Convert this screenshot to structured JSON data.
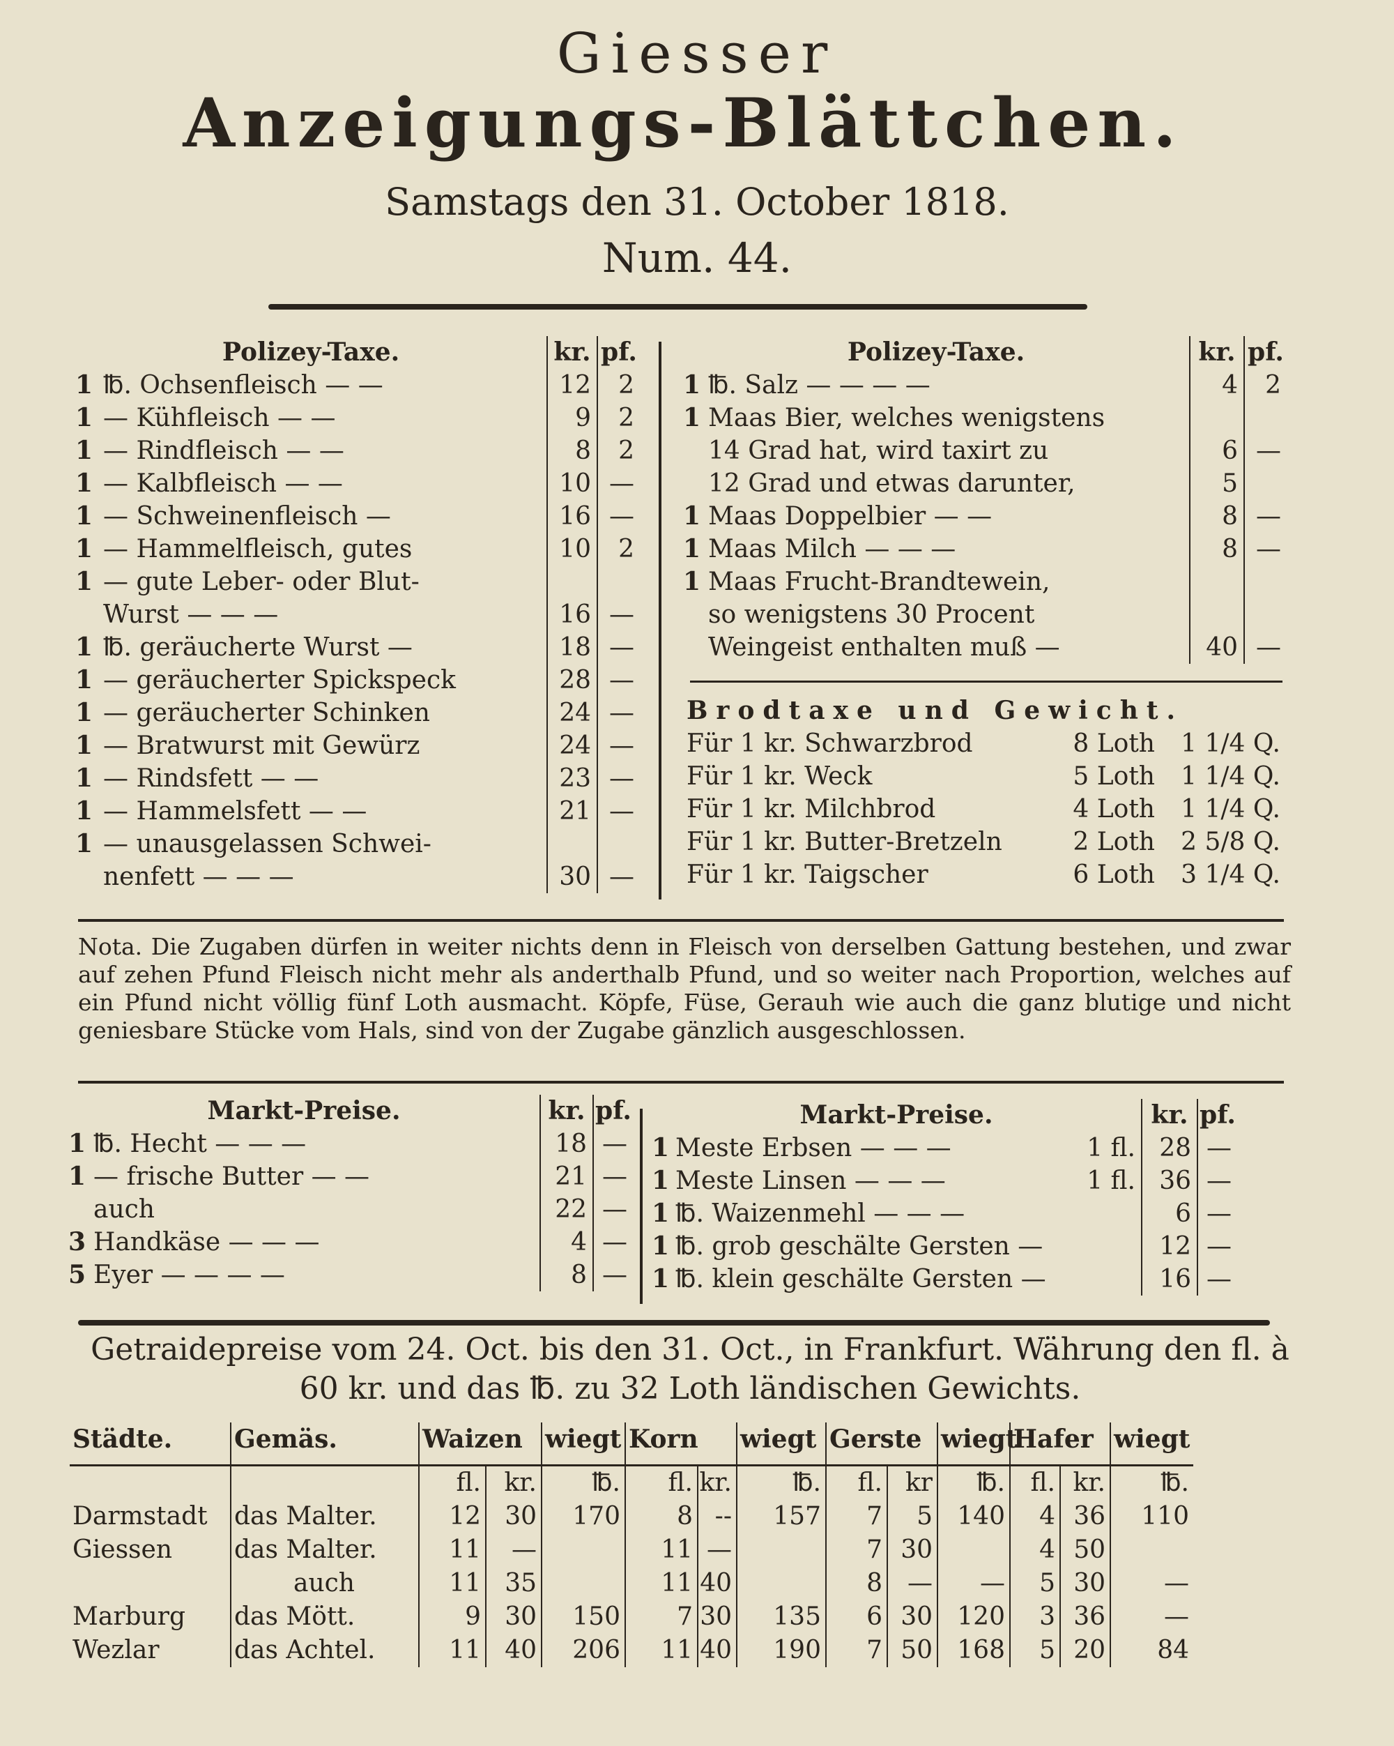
{
  "masthead": {
    "line1": "Giesser",
    "line2": "Anzeigungs-Blättchen.",
    "date": "Samstags den 31. October 1818.",
    "number": "Num. 44."
  },
  "polizey_left": {
    "title": "Polizey-Taxe.",
    "col_kr": "kr.",
    "col_pf": "pf.",
    "rows": [
      [
        "1",
        "℔. Ochsenfleisch  —  —",
        "12",
        "2"
      ],
      [
        "1",
        "— Kühfleisch  —  —",
        "9",
        "2"
      ],
      [
        "1",
        "— Rindfleisch  —  —",
        "8",
        "2"
      ],
      [
        "1",
        "— Kalbfleisch  —  —",
        "10",
        "—"
      ],
      [
        "1",
        "— Schweinenfleisch  —",
        "16",
        "—"
      ],
      [
        "1",
        "— Hammelfleisch, gutes",
        "10",
        "2"
      ],
      [
        "1",
        "— gute Leber- oder Blut-",
        "",
        ""
      ],
      [
        "",
        "Wurst  —  —  —",
        "16",
        "—"
      ],
      [
        "1",
        "℔. geräucherte Wurst  —",
        "18",
        "—"
      ],
      [
        "1",
        "— geräucherter Spickspeck",
        "28",
        "—"
      ],
      [
        "1",
        "— geräucherter Schinken",
        "24",
        "—"
      ],
      [
        "1",
        "— Bratwurst mit Gewürz",
        "24",
        "—"
      ],
      [
        "1",
        "— Rindsfett  —  —",
        "23",
        "—"
      ],
      [
        "1",
        "— Hammelsfett  —  —",
        "21",
        "—"
      ],
      [
        "1",
        "— unausgelassen Schwei-",
        "",
        ""
      ],
      [
        "",
        "nenfett  —  —  —",
        "30",
        "—"
      ]
    ]
  },
  "polizey_right": {
    "title": "Polizey-Taxe.",
    "col_kr": "kr.",
    "col_pf": "pf.",
    "rows": [
      [
        "1",
        "℔. Salz  —  —  —  —",
        "4",
        "2"
      ],
      [
        "1",
        "Maas Bier, welches wenigstens",
        "",
        ""
      ],
      [
        "",
        "14 Grad hat, wird taxirt zu",
        "6",
        "—"
      ],
      [
        "",
        "12 Grad und etwas darunter,",
        "5",
        ""
      ],
      [
        "1",
        "Maas Doppelbier  —  —",
        "8",
        "—"
      ],
      [
        "1",
        "Maas Milch  —  —  —",
        "8",
        "—"
      ],
      [
        "1",
        "Maas Frucht-Brandtewein,",
        "",
        ""
      ],
      [
        "",
        "so wenigstens 30 Procent",
        "",
        ""
      ],
      [
        "",
        "Weingeist enthalten muß  —",
        "40",
        "—"
      ]
    ]
  },
  "brodtaxe": {
    "title": "Brodtaxe und Gewicht.",
    "rows": [
      [
        "Für 1 kr. Schwarzbrod",
        "8 Loth",
        "1 1/4 Q."
      ],
      [
        "Für 1 kr. Weck",
        "5 Loth",
        "1 1/4 Q."
      ],
      [
        "Für 1 kr. Milchbrod",
        "4 Loth",
        "1 1/4 Q."
      ],
      [
        "Für 1 kr. Butter-Bretzeln",
        "2 Loth",
        "2 5/8 Q."
      ],
      [
        "Für 1 kr. Taigscher",
        "6 Loth",
        "3 1/4 Q."
      ]
    ]
  },
  "nota": "Nota. Die Zugaben dürfen in weiter nichts denn in Fleisch von derselben Gattung bestehen, und zwar auf zehen Pfund Fleisch nicht mehr als anderthalb Pfund, und so weiter nach Proportion, welches auf ein Pfund nicht völlig fünf Loth ausmacht. Köpfe, Füse, Gerauh wie auch die ganz blutige und nicht geniesbare Stücke vom Hals, sind von der Zugabe gänzlich ausgeschlossen.",
  "markt_left": {
    "title": "Markt-Preise.",
    "col_kr": "kr.",
    "col_pf": "pf.",
    "rows": [
      [
        "1",
        "℔. Hecht  —  —  —",
        "18",
        "—"
      ],
      [
        "1",
        "— frische Butter  —  —",
        "21",
        "—"
      ],
      [
        "",
        "auch",
        "22",
        "—"
      ],
      [
        "3",
        "Handkäse  —  —  —",
        "4",
        "—"
      ],
      [
        "5",
        "Eyer  —  —  —  —",
        "8",
        "—"
      ]
    ]
  },
  "markt_right": {
    "title": "Markt-Preise.",
    "col_kr": "kr.",
    "col_pf": "pf.",
    "rows": [
      [
        "1",
        "Meste Erbsen  —  —  —",
        "1 fl.",
        "28",
        "—"
      ],
      [
        "1",
        "Meste Linsen  —  —  —",
        "1 fl.",
        "36",
        "—"
      ],
      [
        "1",
        "℔. Waizenmehl  —  —  —",
        "",
        "6",
        "—"
      ],
      [
        "1",
        "℔. grob geschälte Gersten  —",
        "",
        "12",
        "—"
      ],
      [
        "1",
        "℔. klein geschälte Gersten  —",
        "",
        "16",
        "—"
      ]
    ]
  },
  "getraide": {
    "heading": "Getraidepreise vom 24. Oct. bis den 31. Oct., in Frankfurt. Währung den fl. à 60 kr. und das ℔. zu 32 Loth ländischen Gewichts.",
    "headers": [
      "Städte.",
      "Gemäs.",
      "Waizen",
      "wiegt",
      "Korn",
      "wiegt",
      "Gerste",
      "wiegt",
      "Hafer",
      "wiegt"
    ],
    "subheaders": [
      "",
      "",
      "fl.",
      "kr.",
      "℔.",
      "fl.",
      "kr.",
      "℔.",
      "fl.",
      "kr",
      "℔.",
      "fl.",
      "kr.",
      "℔."
    ],
    "rows": [
      [
        "Darmstadt",
        "das Malter.",
        "12",
        "30",
        "170",
        "8",
        "--",
        "157",
        "7",
        "5",
        "140",
        "4",
        "36",
        "110"
      ],
      [
        "Giessen",
        "das Malter.",
        "11",
        "—",
        "",
        "11",
        "—",
        "",
        "7",
        "30",
        "",
        "4",
        "50",
        ""
      ],
      [
        "",
        "auch",
        "11",
        "35",
        "",
        "11",
        "40",
        "",
        "8",
        "—",
        "—",
        "5",
        "30",
        "—"
      ],
      [
        "Marburg",
        "das Mött.",
        "9",
        "30",
        "150",
        "7",
        "30",
        "135",
        "6",
        "30",
        "120",
        "3",
        "36",
        "—"
      ],
      [
        "Wezlar",
        "das Achtel.",
        "11",
        "40",
        "206",
        "11",
        "40",
        "190",
        "7",
        "50",
        "168",
        "5",
        "20",
        "84"
      ]
    ]
  }
}
